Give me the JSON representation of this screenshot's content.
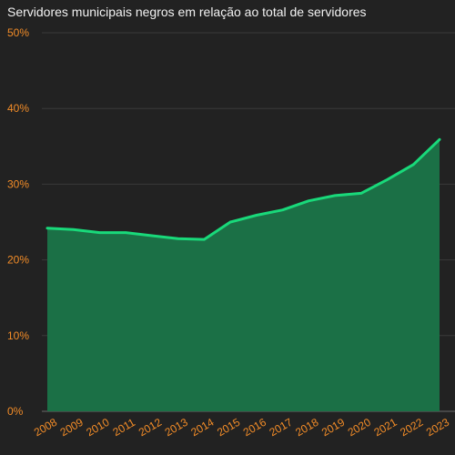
{
  "chart_data": {
    "type": "area",
    "title": "Servidores municipais negros em relação ao total de servidores",
    "xlabel": "",
    "ylabel": "",
    "categories": [
      "2008",
      "2009",
      "2010",
      "2011",
      "2012",
      "2013",
      "2014",
      "2015",
      "2016",
      "2017",
      "2018",
      "2019",
      "2020",
      "2021",
      "2022",
      "2023"
    ],
    "values": [
      24.2,
      24.0,
      23.6,
      23.6,
      23.2,
      22.8,
      22.7,
      25.0,
      25.9,
      26.6,
      27.8,
      28.5,
      28.8,
      30.6,
      32.6,
      35.9
    ],
    "ylim": [
      0,
      50
    ],
    "y_ticks": [
      {
        "value": 0,
        "label": "0%"
      },
      {
        "value": 10,
        "label": "10%"
      },
      {
        "value": 20,
        "label": "20%"
      },
      {
        "value": 30,
        "label": "30%"
      },
      {
        "value": 40,
        "label": "40%"
      },
      {
        "value": 50,
        "label": "50%"
      }
    ],
    "grid": true,
    "legend": "none",
    "colors": {
      "background": "#222222",
      "line": "#19d97a",
      "area": "#1b7046",
      "tick_label": "#f28c28",
      "title": "#f2f2f2"
    }
  }
}
